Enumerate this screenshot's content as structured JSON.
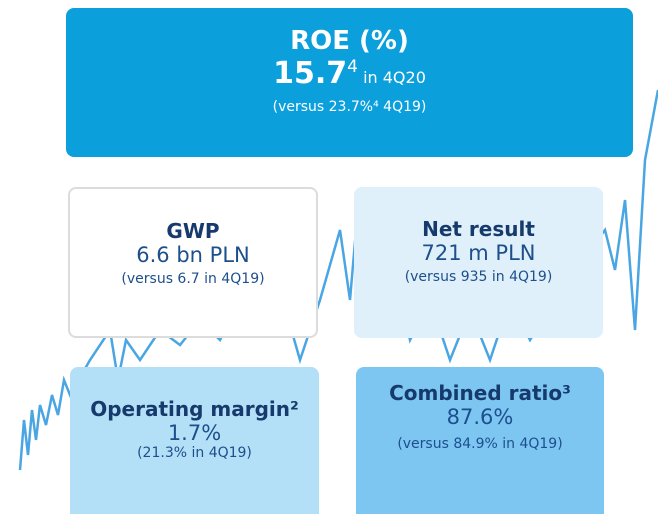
{
  "roe": {
    "title": "ROE (%)",
    "value": "15.7",
    "value_note": "4",
    "period": "in 4Q20",
    "comparison": "(versus 23.7%⁴ 4Q19)"
  },
  "cards": [
    {
      "title": "GWP",
      "value": "6.6 bn PLN",
      "comparison": "(versus 6.7 in 4Q19)"
    },
    {
      "title": "Net result",
      "value": "721 m PLN",
      "comparison": "(versus 935 in 4Q19)"
    },
    {
      "title": "Operating margin²",
      "value": "1.7%",
      "comparison": "(21.3% in 4Q19)"
    },
    {
      "title": "Combined ratio³",
      "value": "87.6%",
      "comparison": "(versus 84.9% in 4Q19)"
    }
  ]
}
